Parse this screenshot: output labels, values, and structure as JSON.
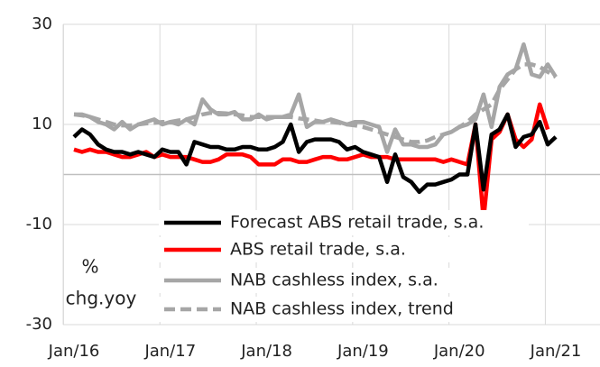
{
  "chart_data": {
    "type": "line",
    "y_label": [
      "%",
      "chg.yoy"
    ],
    "categories": [
      "Jan/16",
      null,
      null,
      null,
      null,
      null,
      null,
      null,
      null,
      null,
      null,
      null,
      "Jan/17",
      null,
      null,
      null,
      null,
      null,
      null,
      null,
      null,
      null,
      null,
      null,
      "Jan/18",
      null,
      null,
      null,
      null,
      null,
      null,
      null,
      null,
      null,
      null,
      null,
      "Jan/19",
      null,
      null,
      null,
      null,
      null,
      null,
      null,
      null,
      null,
      null,
      null,
      "Jan/20",
      null,
      null,
      null,
      null,
      null,
      null,
      null,
      null,
      null,
      null,
      null,
      "Jan/21"
    ],
    "ylim": [
      -30,
      30
    ],
    "yticks": [
      -30,
      -10,
      10,
      30
    ],
    "grid": true,
    "legend": "bottom",
    "series": [
      {
        "name": "Forecast ABS retail trade, s.a.",
        "color": "#000000",
        "dash": false,
        "values": [
          7.5,
          9,
          8,
          6,
          5,
          4.5,
          4.5,
          4,
          4.5,
          4,
          3.5,
          5,
          4.5,
          4.5,
          2,
          6.5,
          6,
          5.5,
          5.5,
          5,
          5,
          5.5,
          5.5,
          5,
          5,
          5.5,
          6.5,
          10,
          4.5,
          6.5,
          7,
          7,
          7,
          6.5,
          5,
          5.5,
          4.5,
          4,
          3.5,
          -1.5,
          4,
          -0.5,
          -1.5,
          -3.5,
          -2,
          -2,
          -1.5,
          -1,
          0,
          0,
          10,
          -3,
          8,
          9,
          12,
          5.5,
          7.5,
          8,
          10.5,
          6,
          7.5
        ]
      },
      {
        "name": "ABS retail trade, s.a.",
        "color": "#ff0000",
        "dash": false,
        "values": [
          5,
          4.5,
          5,
          4.5,
          4.5,
          4,
          3.5,
          3.5,
          4,
          4.5,
          3.5,
          4,
          3.5,
          3.5,
          3.5,
          3,
          2.5,
          2.5,
          3,
          4,
          4,
          4,
          3.5,
          2,
          2,
          2,
          3,
          3,
          2.5,
          2.5,
          3,
          3.5,
          3.5,
          3,
          3,
          3.5,
          4,
          3.5,
          3.5,
          3.5,
          3,
          3,
          3,
          3,
          3,
          3,
          2.5,
          3,
          2.5,
          2,
          10,
          -9,
          7,
          8.5,
          12,
          7,
          5.5,
          7,
          14,
          9,
          null
        ]
      },
      {
        "name": "NAB cashless index, s.a.",
        "color": "#a6a6a6",
        "dash": false,
        "values": [
          12,
          12,
          11.5,
          10.5,
          10,
          9,
          10.5,
          9,
          10,
          10.5,
          11,
          10,
          10.5,
          10,
          11,
          10,
          15,
          13,
          12,
          12,
          12.5,
          11,
          11,
          12,
          11,
          11.5,
          11.5,
          12,
          16,
          9.5,
          10.5,
          10.5,
          11,
          10.5,
          10,
          10.5,
          10.5,
          10,
          9.5,
          4.5,
          9,
          6,
          6,
          5.5,
          5.5,
          6,
          8,
          8.5,
          9.5,
          10,
          11,
          16,
          9.5,
          17.5,
          20,
          21,
          26,
          20,
          19.5,
          22,
          19.5
        ]
      },
      {
        "name": "NAB cashless index, trend",
        "color": "#a6a6a6",
        "dash": true,
        "values": [
          12,
          11.8,
          11.5,
          11,
          10.5,
          10,
          9.8,
          9.8,
          10,
          10.2,
          10.3,
          10.5,
          10.5,
          10.8,
          11,
          11.5,
          12,
          12.3,
          12.3,
          12.2,
          12,
          11.8,
          11.5,
          11.5,
          11.5,
          11.5,
          11.5,
          11.5,
          11.2,
          11,
          10.8,
          10.5,
          10.5,
          10.3,
          10,
          9.8,
          9.5,
          9,
          8.5,
          8,
          7.5,
          7,
          6.5,
          6.5,
          6.8,
          7.5,
          8,
          8.5,
          9.5,
          10.5,
          12,
          13,
          14,
          17,
          19,
          21,
          22,
          22,
          21.5,
          20.5,
          19.5
        ]
      }
    ]
  }
}
